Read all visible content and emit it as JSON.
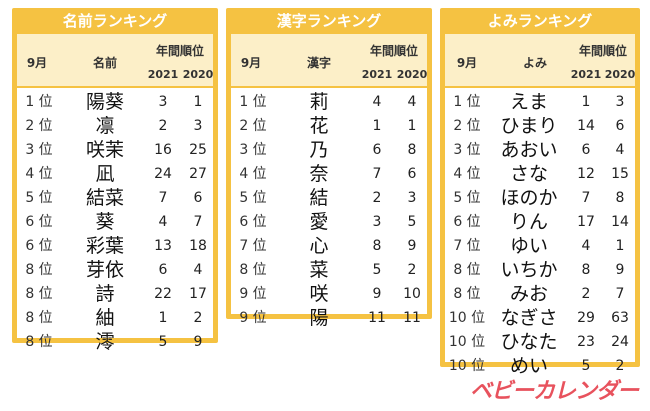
{
  "panels": [
    {
      "title": "名前ランキング",
      "col_month": "9月",
      "col_item": "名前",
      "col_years": "年間順位",
      "year_a": "2021",
      "year_b": "2020",
      "rows": [
        {
          "rank": "1 位",
          "item": "陽葵",
          "a": "3",
          "b": "1"
        },
        {
          "rank": "2 位",
          "item": "凛",
          "a": "2",
          "b": "3"
        },
        {
          "rank": "3 位",
          "item": "咲茉",
          "a": "16",
          "b": "25"
        },
        {
          "rank": "4 位",
          "item": "凪",
          "a": "24",
          "b": "27"
        },
        {
          "rank": "5 位",
          "item": "結菜",
          "a": "7",
          "b": "6"
        },
        {
          "rank": "6 位",
          "item": "葵",
          "a": "4",
          "b": "7"
        },
        {
          "rank": "6 位",
          "item": "彩葉",
          "a": "13",
          "b": "18"
        },
        {
          "rank": "8 位",
          "item": "芽依",
          "a": "6",
          "b": "4"
        },
        {
          "rank": "8 位",
          "item": "詩",
          "a": "22",
          "b": "17"
        },
        {
          "rank": "8 位",
          "item": "紬",
          "a": "1",
          "b": "2"
        },
        {
          "rank": "8 位",
          "item": "澪",
          "a": "5",
          "b": "9"
        }
      ]
    },
    {
      "title": "漢字ランキング",
      "col_month": "9月",
      "col_item": "漢字",
      "col_years": "年間順位",
      "year_a": "2021",
      "year_b": "2020",
      "rows": [
        {
          "rank": "1 位",
          "item": "莉",
          "a": "4",
          "b": "4"
        },
        {
          "rank": "2 位",
          "item": "花",
          "a": "1",
          "b": "1"
        },
        {
          "rank": "3 位",
          "item": "乃",
          "a": "6",
          "b": "8"
        },
        {
          "rank": "4 位",
          "item": "奈",
          "a": "7",
          "b": "6"
        },
        {
          "rank": "5 位",
          "item": "結",
          "a": "2",
          "b": "3"
        },
        {
          "rank": "6 位",
          "item": "愛",
          "a": "3",
          "b": "5"
        },
        {
          "rank": "7 位",
          "item": "心",
          "a": "8",
          "b": "9"
        },
        {
          "rank": "8 位",
          "item": "菜",
          "a": "5",
          "b": "2"
        },
        {
          "rank": "9 位",
          "item": "咲",
          "a": "9",
          "b": "10"
        },
        {
          "rank": "9 位",
          "item": "陽",
          "a": "11",
          "b": "11"
        }
      ]
    },
    {
      "title": "よみランキング",
      "col_month": "9月",
      "col_item": "よみ",
      "col_years": "年間順位",
      "year_a": "2021",
      "year_b": "2020",
      "rows": [
        {
          "rank": "1 位",
          "item": "えま",
          "a": "1",
          "b": "3"
        },
        {
          "rank": "2 位",
          "item": "ひまり",
          "a": "14",
          "b": "6"
        },
        {
          "rank": "3 位",
          "item": "あおい",
          "a": "6",
          "b": "4"
        },
        {
          "rank": "4 位",
          "item": "さな",
          "a": "12",
          "b": "15"
        },
        {
          "rank": "5 位",
          "item": "ほのか",
          "a": "7",
          "b": "8"
        },
        {
          "rank": "6 位",
          "item": "りん",
          "a": "17",
          "b": "14"
        },
        {
          "rank": "7 位",
          "item": "ゆい",
          "a": "4",
          "b": "1"
        },
        {
          "rank": "8 位",
          "item": "いちか",
          "a": "8",
          "b": "9"
        },
        {
          "rank": "8 位",
          "item": "みお",
          "a": "2",
          "b": "7"
        },
        {
          "rank": "10 位",
          "item": "なぎさ",
          "a": "29",
          "b": "63"
        },
        {
          "rank": "10 位",
          "item": "ひなた",
          "a": "23",
          "b": "24"
        },
        {
          "rank": "10 位",
          "item": "めい",
          "a": "5",
          "b": "2"
        }
      ]
    }
  ],
  "logo_text": "ベビーカレンダー",
  "colors": {
    "panel_border": "#f5c242",
    "header_fill": "#fcefc8",
    "logo": "#e8525d"
  }
}
